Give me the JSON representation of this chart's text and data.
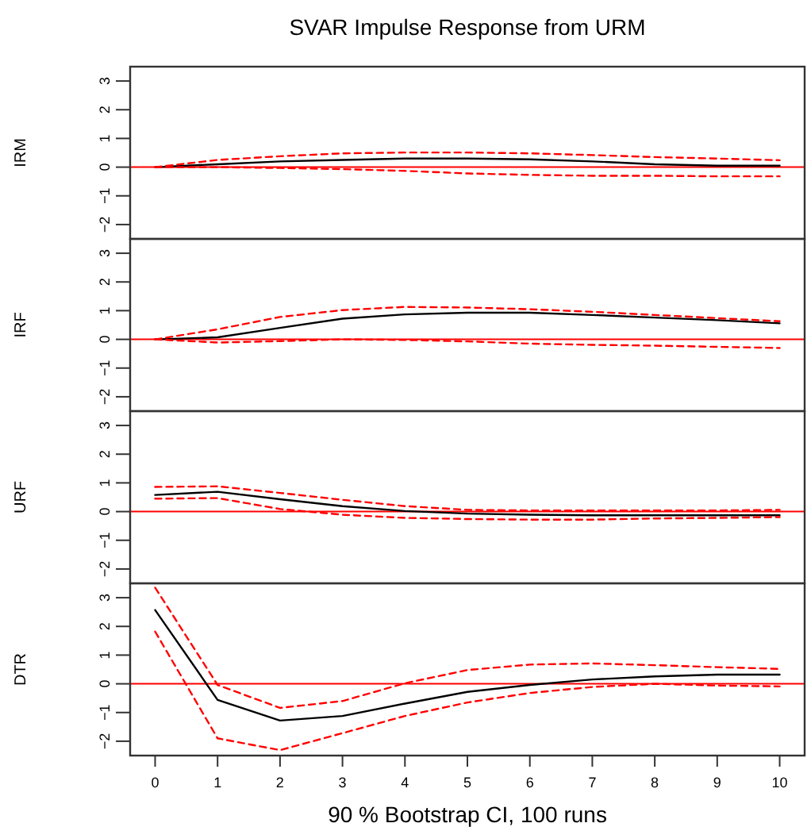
{
  "chart_data": [
    {
      "type": "line",
      "title": "SVAR Impulse Response from URM",
      "ylabel": "IRM",
      "x": [
        0,
        1,
        2,
        3,
        4,
        5,
        6,
        7,
        8,
        9,
        10
      ],
      "xlim": [
        -0.4,
        10.4
      ],
      "ylim": [
        -2.5,
        3.5
      ],
      "yticks": [
        -2,
        -1,
        0,
        1,
        2,
        3
      ],
      "tick_labels": "y",
      "series": [
        {
          "color": "#000000",
          "line_style": "solid",
          "values": [
            0,
            0.1,
            0.2,
            0.25,
            0.3,
            0.3,
            0.27,
            0.2,
            0.1,
            0.05,
            0.05
          ]
        },
        {
          "color": "#ff0000",
          "line_style": "dashed",
          "values": [
            0,
            0.25,
            0.38,
            0.48,
            0.51,
            0.51,
            0.48,
            0.42,
            0.35,
            0.3,
            0.24
          ]
        },
        {
          "color": "#ff0000",
          "line_style": "dashed",
          "values": [
            0,
            0,
            -0.03,
            -0.07,
            -0.13,
            -0.22,
            -0.27,
            -0.3,
            -0.3,
            -0.32,
            -0.32
          ]
        }
      ],
      "ref_lines": [
        {
          "axis": "y",
          "value": 0,
          "color": "#ff0000"
        }
      ]
    },
    {
      "type": "line",
      "ylabel": "IRF",
      "x": [
        0,
        1,
        2,
        3,
        4,
        5,
        6,
        7,
        8,
        9,
        10
      ],
      "xlim": [
        -0.4,
        10.4
      ],
      "ylim": [
        -2.5,
        3.5
      ],
      "yticks": [
        -2,
        -1,
        0,
        1,
        2,
        3
      ],
      "tick_labels": "y",
      "series": [
        {
          "color": "#000000",
          "line_style": "solid",
          "values": [
            0,
            0.07,
            0.4,
            0.72,
            0.87,
            0.93,
            0.93,
            0.85,
            0.76,
            0.67,
            0.56
          ]
        },
        {
          "color": "#ff0000",
          "line_style": "dashed",
          "values": [
            0,
            0.35,
            0.78,
            1.02,
            1.13,
            1.11,
            1.05,
            0.96,
            0.85,
            0.74,
            0.63
          ]
        },
        {
          "color": "#ff0000",
          "line_style": "dashed",
          "values": [
            0,
            -0.11,
            -0.06,
            0,
            -0.02,
            -0.07,
            -0.15,
            -0.19,
            -0.22,
            -0.26,
            -0.3
          ]
        }
      ],
      "ref_lines": [
        {
          "axis": "y",
          "value": 0,
          "color": "#ff0000"
        }
      ]
    },
    {
      "type": "line",
      "ylabel": "URF",
      "x": [
        0,
        1,
        2,
        3,
        4,
        5,
        6,
        7,
        8,
        9,
        10
      ],
      "xlim": [
        -0.4,
        10.4
      ],
      "ylim": [
        -2.5,
        3.5
      ],
      "yticks": [
        -2,
        -1,
        0,
        1,
        2,
        3
      ],
      "tick_labels": "y",
      "series": [
        {
          "color": "#000000",
          "line_style": "solid",
          "values": [
            0.58,
            0.69,
            0.43,
            0.19,
            0.02,
            -0.07,
            -0.11,
            -0.13,
            -0.13,
            -0.13,
            -0.13
          ]
        },
        {
          "color": "#ff0000",
          "line_style": "dashed",
          "values": [
            0.86,
            0.88,
            0.65,
            0.41,
            0.19,
            0.06,
            0.04,
            0.04,
            0.04,
            0.04,
            0.06
          ]
        },
        {
          "color": "#ff0000",
          "line_style": "dashed",
          "values": [
            0.45,
            0.47,
            0.09,
            -0.11,
            -0.22,
            -0.26,
            -0.28,
            -0.28,
            -0.24,
            -0.22,
            -0.19
          ]
        }
      ],
      "ref_lines": [
        {
          "axis": "y",
          "value": 0,
          "color": "#ff0000"
        }
      ]
    },
    {
      "type": "line",
      "ylabel": "DTR",
      "xlabel": "90 % Bootstrap CI,  100 runs",
      "x": [
        0,
        1,
        2,
        3,
        4,
        5,
        6,
        7,
        8,
        9,
        10
      ],
      "xlim": [
        -0.4,
        10.4
      ],
      "xticks": [
        0,
        1,
        2,
        3,
        4,
        5,
        6,
        7,
        8,
        9,
        10
      ],
      "ylim": [
        -2.5,
        3.5
      ],
      "yticks": [
        -2,
        -1,
        0,
        1,
        2,
        3
      ],
      "series": [
        {
          "color": "#000000",
          "line_style": "solid",
          "values": [
            2.57,
            -0.56,
            -1.28,
            -1.12,
            -0.69,
            -0.28,
            -0.04,
            0.15,
            0.26,
            0.32,
            0.32
          ]
        },
        {
          "color": "#ff0000",
          "line_style": "dashed",
          "values": [
            3.35,
            -0.04,
            -0.84,
            -0.6,
            0.02,
            0.48,
            0.67,
            0.71,
            0.65,
            0.58,
            0.52
          ]
        },
        {
          "color": "#ff0000",
          "line_style": "dashed",
          "values": [
            1.82,
            -1.9,
            -2.31,
            -1.72,
            -1.12,
            -0.65,
            -0.32,
            -0.11,
            0,
            -0.06,
            -0.09
          ]
        }
      ],
      "ref_lines": [
        {
          "axis": "y",
          "value": 0,
          "color": "#ff0000"
        }
      ]
    }
  ]
}
